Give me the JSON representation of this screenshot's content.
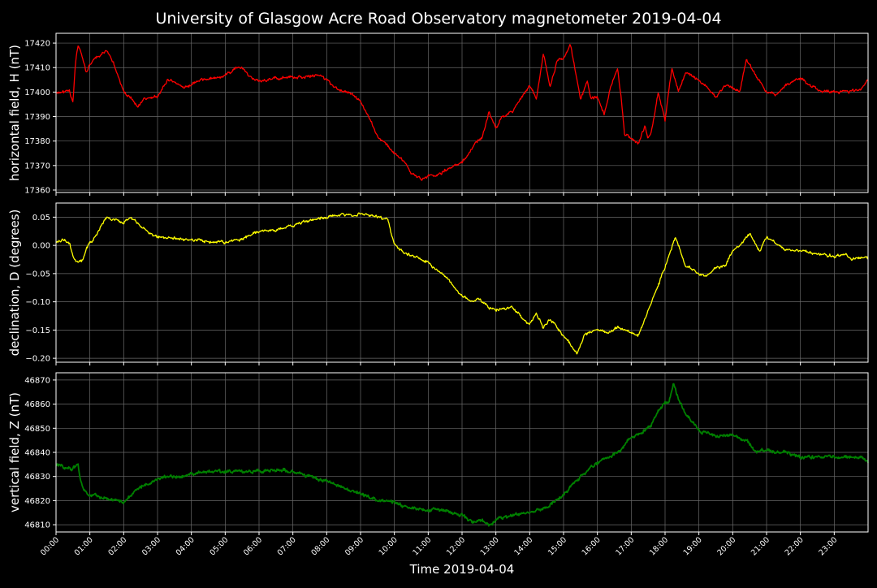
{
  "title": "University of Glasgow Acre Road Observatory magnetometer 2019-04-04",
  "colors": {
    "background": "#000000",
    "grid": "#6a6a6a",
    "frame": "#ffffff",
    "text": "#ffffff"
  },
  "chart_data": [
    {
      "type": "line",
      "ylabel": "horizontal field, H (nT)",
      "ylim": [
        17359,
        17424
      ],
      "yticks": [
        17360,
        17370,
        17380,
        17390,
        17400,
        17410,
        17420
      ],
      "ytick_labels": [
        "17360",
        "17370",
        "17380",
        "17390",
        "17400",
        "17410",
        "17420"
      ],
      "grid": true,
      "series": [
        {
          "color": "#ff0000",
          "noise": 0.6,
          "x": [
            0.0,
            0.4,
            0.5,
            0.58,
            0.65,
            0.72,
            0.8,
            0.9,
            1.0,
            1.2,
            1.5,
            1.7,
            2.0,
            2.2,
            2.4,
            2.6,
            3.0,
            3.3,
            3.8,
            4.3,
            4.8,
            5.2,
            5.3,
            5.5,
            5.8,
            6.3,
            6.8,
            7.2,
            7.8,
            8.0,
            8.3,
            8.7,
            9.0,
            9.3,
            9.5,
            10.0,
            10.3,
            10.5,
            10.8,
            11.0,
            11.3,
            11.5,
            12.0,
            12.3,
            12.6,
            12.8,
            13.0,
            13.2,
            13.5,
            14.0,
            14.2,
            14.4,
            14.6,
            14.8,
            15.0,
            15.2,
            15.35,
            15.5,
            15.7,
            15.8,
            16.0,
            16.2,
            16.4,
            16.6,
            16.7,
            16.8,
            17.0,
            17.2,
            17.4,
            17.5,
            17.6,
            17.8,
            18.0,
            18.2,
            18.4,
            18.6,
            19.0,
            19.5,
            19.8,
            20.2,
            20.4,
            20.6,
            21.0,
            21.3,
            21.6,
            22.0,
            22.5,
            23.0,
            23.4,
            23.6,
            23.8,
            24.0
          ],
          "y": [
            17400,
            17400,
            17396,
            17412,
            17419,
            17417,
            17413,
            17408,
            17412,
            17414,
            17417,
            17412,
            17400,
            17398,
            17394,
            17397,
            17398,
            17405,
            17402,
            17405,
            17406,
            17408,
            17410,
            17410,
            17405,
            17405,
            17406,
            17406,
            17407,
            17405,
            17401,
            17400,
            17396,
            17388,
            17382,
            17375,
            17372,
            17367,
            17364,
            17366,
            17366,
            17368,
            17371,
            17377,
            17382,
            17392,
            17385,
            17390,
            17392,
            17403,
            17397,
            17416,
            17402,
            17412,
            17414,
            17420,
            17409,
            17397,
            17405,
            17397,
            17398,
            17391,
            17402,
            17410,
            17398,
            17383,
            17381,
            17379,
            17386,
            17381,
            17384,
            17400,
            17388,
            17410,
            17400,
            17408,
            17405,
            17398,
            17403,
            17400,
            17413,
            17409,
            17400,
            17399,
            17403,
            17406,
            17401,
            17400,
            17400,
            17401,
            17401,
            17405
          ]
        }
      ]
    },
    {
      "type": "line",
      "ylabel": "declination, D (degrees)",
      "ylim": [
        -0.207,
        0.075
      ],
      "yticks": [
        -0.2,
        -0.15,
        -0.1,
        -0.05,
        0.0,
        0.05
      ],
      "ytick_labels": [
        "−0.20",
        "−0.15",
        "−0.10",
        "−0.05",
        "0.00",
        "0.05"
      ],
      "grid": true,
      "series": [
        {
          "color": "#ffff00",
          "noise": 0.0025,
          "x": [
            0.0,
            0.2,
            0.4,
            0.5,
            0.6,
            0.7,
            0.8,
            0.9,
            1.0,
            1.1,
            1.3,
            1.5,
            1.8,
            2.0,
            2.2,
            2.5,
            2.8,
            3.0,
            3.5,
            4.0,
            4.5,
            5.0,
            5.5,
            6.0,
            6.5,
            7.0,
            7.5,
            8.0,
            8.5,
            9.0,
            9.5,
            9.8,
            10.0,
            10.3,
            10.6,
            11.0,
            11.3,
            11.6,
            12.0,
            12.3,
            12.5,
            12.8,
            13.0,
            13.2,
            13.5,
            13.8,
            14.0,
            14.2,
            14.4,
            14.6,
            15.0,
            15.2,
            15.4,
            15.6,
            16.0,
            16.3,
            16.6,
            17.0,
            17.2,
            17.4,
            17.6,
            17.8,
            18.0,
            18.3,
            18.6,
            19.0,
            19.2,
            19.5,
            19.8,
            20.0,
            20.3,
            20.5,
            20.8,
            21.0,
            21.5,
            22.0,
            22.5,
            23.0,
            23.3,
            23.5,
            23.8,
            24.0
          ],
          "y": [
            0.005,
            0.01,
            0.005,
            -0.02,
            -0.03,
            -0.03,
            -0.025,
            -0.005,
            0.005,
            0.01,
            0.03,
            0.05,
            0.045,
            0.04,
            0.05,
            0.035,
            0.02,
            0.015,
            0.013,
            0.01,
            0.008,
            0.005,
            0.012,
            0.025,
            0.027,
            0.035,
            0.045,
            0.05,
            0.055,
            0.055,
            0.05,
            0.045,
            0.0,
            -0.015,
            -0.02,
            -0.03,
            -0.045,
            -0.06,
            -0.09,
            -0.1,
            -0.095,
            -0.11,
            -0.115,
            -0.11,
            -0.11,
            -0.13,
            -0.14,
            -0.12,
            -0.145,
            -0.13,
            -0.16,
            -0.175,
            -0.195,
            -0.16,
            -0.15,
            -0.155,
            -0.145,
            -0.155,
            -0.16,
            -0.13,
            -0.1,
            -0.07,
            -0.04,
            0.015,
            -0.035,
            -0.05,
            -0.055,
            -0.04,
            -0.035,
            -0.01,
            0.005,
            0.02,
            -0.01,
            0.015,
            -0.005,
            -0.01,
            -0.015,
            -0.02,
            -0.015,
            -0.025,
            -0.02,
            -0.022
          ]
        }
      ]
    },
    {
      "type": "line",
      "ylabel": "vertical field, Z (nT)",
      "ylim": [
        46807,
        46873
      ],
      "yticks": [
        46810,
        46820,
        46830,
        46840,
        46850,
        46860,
        46870
      ],
      "ytick_labels": [
        "46810",
        "46820",
        "46830",
        "46840",
        "46850",
        "46860",
        "46870"
      ],
      "grid": true,
      "series": [
        {
          "color": "#008000",
          "noise": 0.7,
          "x": [
            0.0,
            0.3,
            0.5,
            0.65,
            0.7,
            0.8,
            1.0,
            1.2,
            1.5,
            2.0,
            2.2,
            2.5,
            3.0,
            3.5,
            4.0,
            4.5,
            5.0,
            5.5,
            6.0,
            6.5,
            7.0,
            7.5,
            8.0,
            8.5,
            9.0,
            9.5,
            10.0,
            10.5,
            11.0,
            11.5,
            12.0,
            12.3,
            12.6,
            12.8,
            13.0,
            13.5,
            14.0,
            14.3,
            14.6,
            15.0,
            15.3,
            15.6,
            16.0,
            16.3,
            16.7,
            17.0,
            17.3,
            17.6,
            17.8,
            18.0,
            18.1,
            18.25,
            18.4,
            18.6,
            19.0,
            19.5,
            20.0,
            20.4,
            20.7,
            21.0,
            21.5,
            22.0,
            22.5,
            23.0,
            23.5,
            23.8,
            24.0
          ],
          "y": [
            46835,
            46834,
            46833,
            46835,
            46830,
            46825,
            46822,
            46822,
            46821,
            46819,
            46822,
            46826,
            46829,
            46830,
            46831,
            46832,
            46832,
            46832,
            46832,
            46833,
            46832,
            46830,
            46828,
            46825,
            46823,
            46820,
            46819,
            46817,
            46816,
            46816,
            46814,
            46811,
            46812,
            46810,
            46812,
            46814,
            46815,
            46816,
            46818,
            46822,
            46827,
            46831,
            46836,
            46838,
            46841,
            46846,
            46848,
            46852,
            46857,
            46861,
            46860,
            46869,
            46862,
            46856,
            46849,
            46847,
            46847,
            46845,
            46840,
            46841,
            46840,
            46838,
            46838,
            46838,
            46838,
            46838,
            46836
          ]
        }
      ]
    }
  ],
  "x_axis": {
    "label": "Time 2019-04-04",
    "xlim": [
      0,
      24
    ],
    "ticks": [
      0,
      1,
      2,
      3,
      4,
      5,
      6,
      7,
      8,
      9,
      10,
      11,
      12,
      13,
      14,
      15,
      16,
      17,
      18,
      19,
      20,
      21,
      22,
      23
    ],
    "tick_labels": [
      "00:00",
      "01:00",
      "02:00",
      "03:00",
      "04:00",
      "05:00",
      "06:00",
      "07:00",
      "08:00",
      "09:00",
      "10:00",
      "11:00",
      "12:00",
      "13:00",
      "14:00",
      "15:00",
      "16:00",
      "17:00",
      "18:00",
      "19:00",
      "20:00",
      "21:00",
      "22:00",
      "23:00"
    ]
  }
}
